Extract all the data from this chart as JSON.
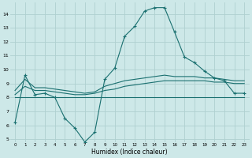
{
  "xlabel": "Humidex (Indice chaleur)",
  "ylabel": "",
  "background_color": "#cde8e8",
  "grid_color": "#afd0d0",
  "line_color": "#1a7070",
  "xlim": [
    -0.5,
    23.5
  ],
  "ylim": [
    4.8,
    14.8
  ],
  "yticks": [
    5,
    6,
    7,
    8,
    9,
    10,
    11,
    12,
    13,
    14
  ],
  "xticks": [
    0,
    1,
    2,
    3,
    4,
    5,
    6,
    7,
    8,
    9,
    10,
    11,
    12,
    13,
    14,
    15,
    16,
    17,
    18,
    19,
    20,
    21,
    22,
    23
  ],
  "line1_x": [
    0,
    1,
    2,
    3,
    4,
    5,
    6,
    7,
    8,
    9,
    10,
    11,
    12,
    13,
    14,
    15,
    16,
    17,
    18,
    19,
    20,
    21,
    22,
    23
  ],
  "line1_y": [
    6.2,
    9.6,
    8.2,
    8.3,
    8.0,
    6.5,
    5.8,
    4.8,
    5.5,
    9.3,
    10.1,
    12.4,
    13.1,
    14.2,
    14.45,
    14.45,
    12.7,
    10.9,
    10.5,
    9.9,
    9.4,
    9.2,
    8.3,
    8.3
  ],
  "line2_x": [
    0,
    1,
    2,
    3,
    4,
    5,
    6,
    7,
    8,
    9,
    10,
    11,
    12,
    13,
    14,
    15,
    16,
    17,
    18,
    19,
    20,
    21,
    22,
    23
  ],
  "line2_y": [
    8.0,
    8.0,
    8.0,
    8.0,
    8.0,
    8.0,
    8.0,
    8.0,
    8.0,
    8.0,
    8.0,
    8.0,
    8.0,
    8.0,
    8.0,
    8.0,
    8.0,
    8.0,
    8.0,
    8.0,
    8.0,
    8.0,
    8.0,
    8.0
  ],
  "line3_x": [
    0,
    1,
    2,
    3,
    4,
    5,
    6,
    7,
    8,
    9,
    10,
    11,
    12,
    13,
    14,
    15,
    16,
    17,
    18,
    19,
    20,
    21,
    22,
    23
  ],
  "line3_y": [
    8.2,
    8.8,
    8.5,
    8.5,
    8.4,
    8.3,
    8.2,
    8.2,
    8.3,
    8.5,
    8.6,
    8.8,
    8.9,
    9.0,
    9.1,
    9.2,
    9.2,
    9.2,
    9.2,
    9.2,
    9.1,
    9.1,
    9.0,
    9.0
  ],
  "line4_x": [
    0,
    1,
    2,
    3,
    4,
    5,
    6,
    7,
    8,
    9,
    10,
    11,
    12,
    13,
    14,
    15,
    16,
    17,
    18,
    19,
    20,
    21,
    22,
    23
  ],
  "line4_y": [
    8.5,
    9.3,
    8.7,
    8.7,
    8.6,
    8.5,
    8.4,
    8.3,
    8.4,
    8.8,
    9.0,
    9.2,
    9.3,
    9.4,
    9.5,
    9.6,
    9.5,
    9.5,
    9.5,
    9.4,
    9.4,
    9.3,
    9.2,
    9.2
  ]
}
